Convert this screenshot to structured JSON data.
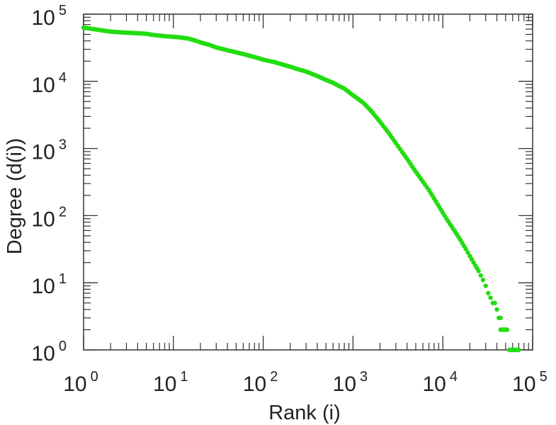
{
  "chart_data": {
    "type": "scatter",
    "title": "",
    "xlabel": "Rank (i)",
    "ylabel": "Degree (d(i))",
    "xscale": "log",
    "yscale": "log",
    "xlim": [
      1,
      100000
    ],
    "ylim": [
      1,
      100000
    ],
    "x_ticks": [
      {
        "base": "10",
        "exp": "0"
      },
      {
        "base": "10",
        "exp": "1"
      },
      {
        "base": "10",
        "exp": "2"
      },
      {
        "base": "10",
        "exp": "3"
      },
      {
        "base": "10",
        "exp": "4"
      },
      {
        "base": "10",
        "exp": "5"
      }
    ],
    "y_ticks": [
      {
        "base": "10",
        "exp": "0"
      },
      {
        "base": "10",
        "exp": "1"
      },
      {
        "base": "10",
        "exp": "2"
      },
      {
        "base": "10",
        "exp": "3"
      },
      {
        "base": "10",
        "exp": "4"
      },
      {
        "base": "10",
        "exp": "5"
      }
    ],
    "grid": false,
    "series": [
      {
        "color": "#22dd11",
        "marker": "circle",
        "x": [
          1,
          2,
          3,
          4,
          5,
          6,
          7,
          8,
          9,
          10,
          12,
          15,
          18,
          20,
          25,
          30,
          40,
          50,
          60,
          80,
          100,
          130,
          160,
          200,
          250,
          300,
          400,
          500,
          600,
          700,
          800,
          1000,
          1300,
          1600,
          2000,
          2500,
          3000,
          3500,
          4000,
          5000,
          6000,
          7000,
          8000,
          10000,
          12000,
          15000,
          18000,
          20000,
          22000,
          25000,
          28000,
          30000,
          32000,
          34000,
          36000,
          38000,
          40000,
          42000,
          44000,
          46000,
          48000,
          50000,
          52000,
          55000,
          58000,
          62000,
          66000,
          70000
        ],
        "y": [
          63000,
          55000,
          53000,
          52000,
          51000,
          49000,
          48000,
          47000,
          46500,
          46000,
          45000,
          43000,
          40000,
          38000,
          35000,
          32000,
          29000,
          27000,
          25500,
          23000,
          21000,
          19500,
          18000,
          16500,
          15000,
          14000,
          12000,
          10500,
          9500,
          8500,
          7800,
          6200,
          4800,
          3600,
          2500,
          1700,
          1200,
          900,
          700,
          450,
          320,
          240,
          180,
          110,
          75,
          48,
          32,
          25,
          20,
          15,
          11,
          9,
          7,
          6,
          5,
          5,
          4,
          3,
          3,
          2,
          2,
          2,
          2,
          1,
          1,
          1,
          1,
          1
        ]
      }
    ]
  }
}
